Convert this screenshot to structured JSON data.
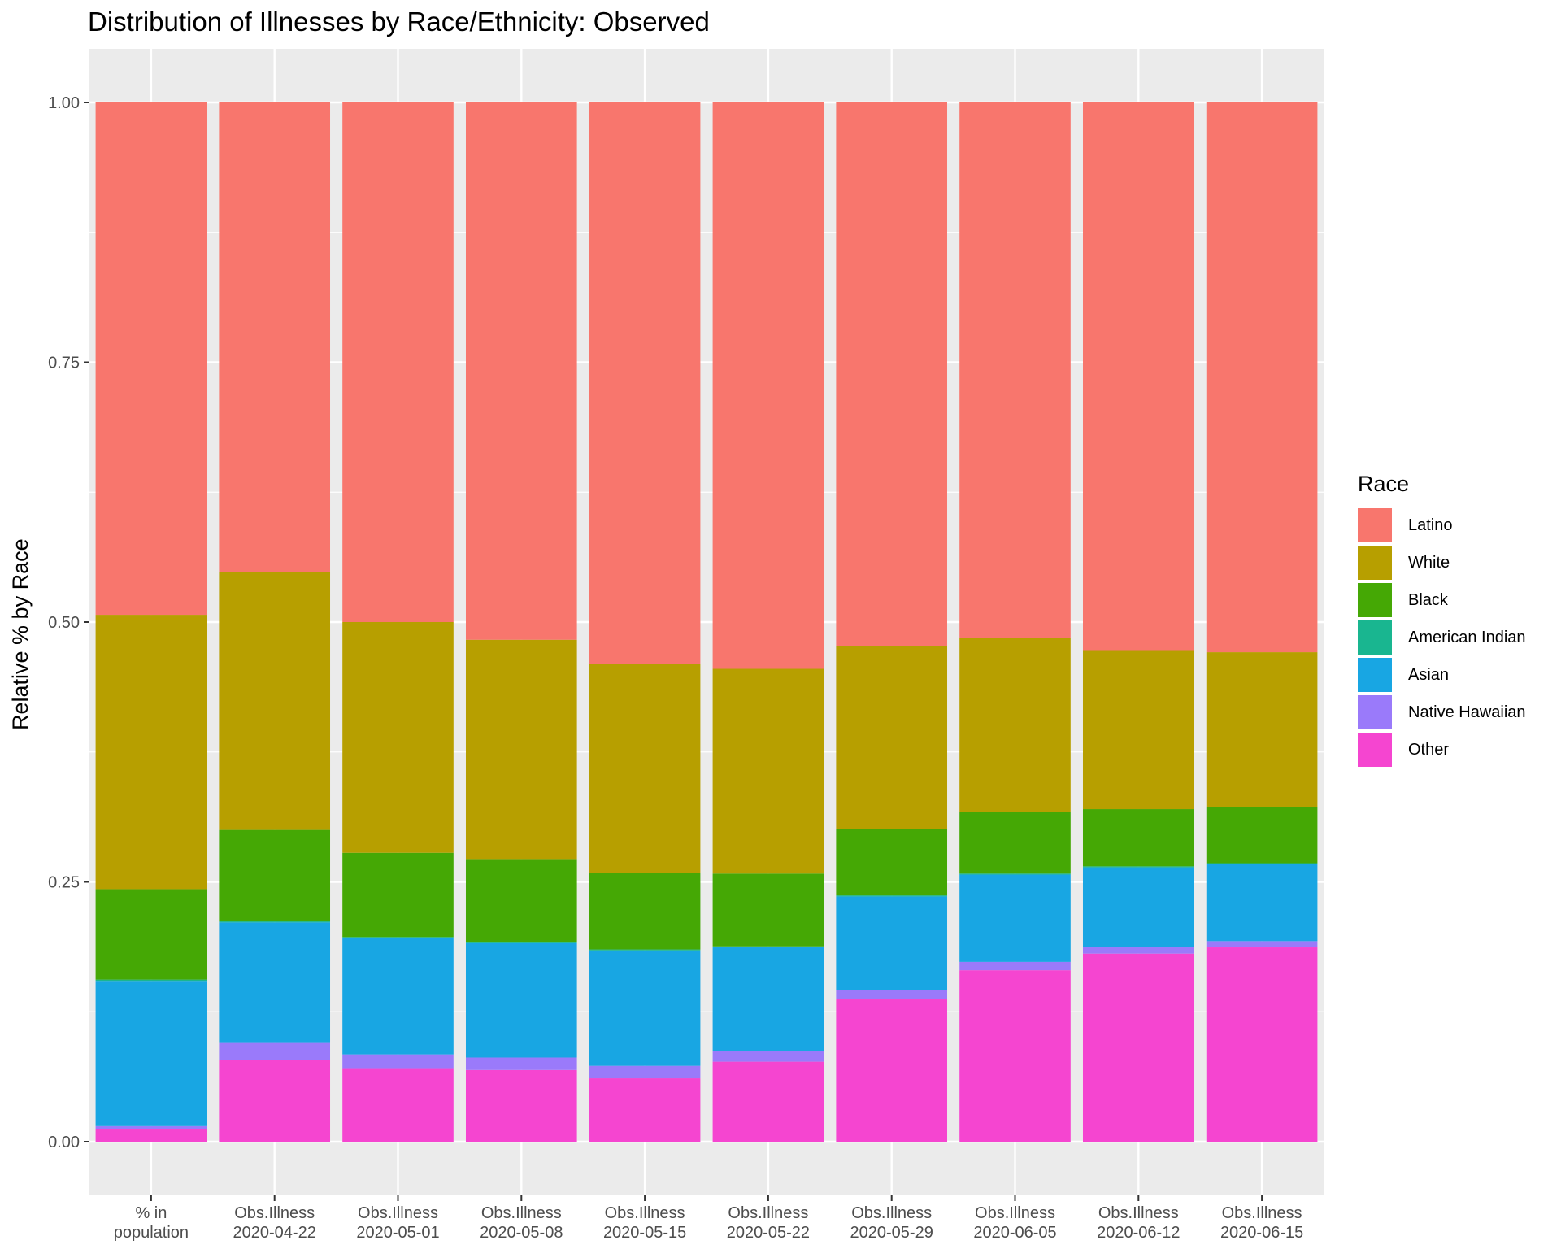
{
  "chart_data": {
    "type": "bar",
    "stacked": true,
    "title": "Distribution of Illnesses by Race/Ethnicity: Observed",
    "xlabel": "",
    "ylabel": "Relative % by Race",
    "ylim": [
      0,
      1
    ],
    "yticks": [
      "0.00",
      "0.25",
      "0.50",
      "0.75",
      "1.00"
    ],
    "categories": [
      [
        "% in",
        "population"
      ],
      [
        "Obs.Illness",
        "2020-04-22"
      ],
      [
        "Obs.Illness",
        "2020-05-01"
      ],
      [
        "Obs.Illness",
        "2020-05-08"
      ],
      [
        "Obs.Illness",
        "2020-05-15"
      ],
      [
        "Obs.Illness",
        "2020-05-22"
      ],
      [
        "Obs.Illness",
        "2020-05-29"
      ],
      [
        "Obs.Illness",
        "2020-06-05"
      ],
      [
        "Obs.Illness",
        "2020-06-12"
      ],
      [
        "Obs.Illness",
        "2020-06-15"
      ]
    ],
    "legend_title": "Race",
    "legend_position": "right",
    "series": [
      {
        "name": "Latino",
        "color": "#F8766D",
        "values": [
          0.493,
          0.452,
          0.5,
          0.517,
          0.54,
          0.545,
          0.523,
          0.515,
          0.527,
          0.529
        ]
      },
      {
        "name": "White",
        "color": "#B79F00",
        "values": [
          0.264,
          0.248,
          0.222,
          0.211,
          0.201,
          0.197,
          0.176,
          0.168,
          0.153,
          0.149
        ]
      },
      {
        "name": "Black",
        "color": "#45A805",
        "values": [
          0.087,
          0.088,
          0.081,
          0.08,
          0.074,
          0.07,
          0.064,
          0.059,
          0.055,
          0.054
        ]
      },
      {
        "name": "American Indian",
        "color": "#19B690",
        "values": [
          0.002,
          0.001,
          0.001,
          0.001,
          0.001,
          0.001,
          0.001,
          0.001,
          0.001,
          0.001
        ]
      },
      {
        "name": "Asian",
        "color": "#18A6E3",
        "values": [
          0.139,
          0.116,
          0.112,
          0.11,
          0.111,
          0.1,
          0.09,
          0.084,
          0.077,
          0.074
        ]
      },
      {
        "name": "Native Hawaiian",
        "color": "#9A7AFA",
        "values": [
          0.003,
          0.016,
          0.014,
          0.012,
          0.012,
          0.01,
          0.009,
          0.008,
          0.006,
          0.006
        ]
      },
      {
        "name": "Other",
        "color": "#F545D0",
        "values": [
          0.012,
          0.079,
          0.07,
          0.069,
          0.061,
          0.077,
          0.137,
          0.165,
          0.181,
          0.187
        ]
      }
    ]
  }
}
